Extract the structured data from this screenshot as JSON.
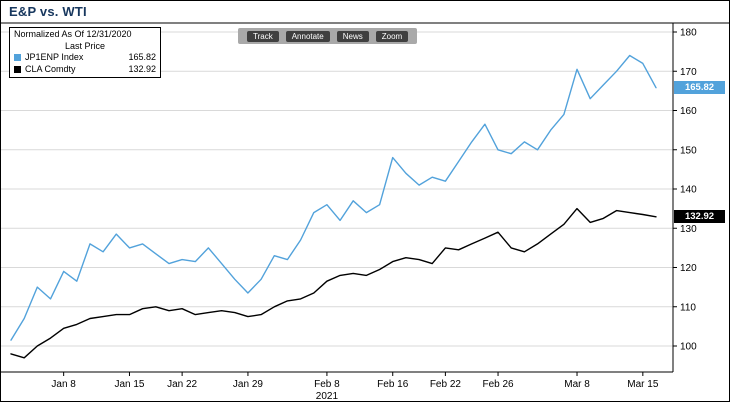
{
  "page": {
    "title": "E&P vs. WTI"
  },
  "toolbar": {
    "items": [
      "Track",
      "Annotate",
      "News",
      "Zoom"
    ]
  },
  "legend": {
    "line1": "Normalized As Of 12/31/2020",
    "line2": "Last Price",
    "series": [
      {
        "label": "JP1ENP Index",
        "value": "165.82",
        "color": "#52A2DB"
      },
      {
        "label": "CLA Comdty",
        "value": "132.92",
        "color": "#000000"
      }
    ]
  },
  "axis": {
    "y_ticks": [
      100,
      110,
      120,
      130,
      140,
      150,
      160,
      170,
      180
    ],
    "x_tick_labels": [
      "Jan 8",
      "Jan 15",
      "Jan 22",
      "Jan 29",
      "Feb 8",
      "Feb 16",
      "Feb 22",
      "Feb 26",
      "Mar 8",
      "Mar 15"
    ],
    "year_label": "2021"
  },
  "colors": {
    "title": "#17375e",
    "grid": "#d9d9d9",
    "frame": "#000000",
    "blue_series": "#52A2DB",
    "black_series": "#000000"
  },
  "chart_data": {
    "type": "line",
    "title": "E&P vs. WTI",
    "subtitle": "Normalized As Of 12/31/2020, Last Price",
    "xlabel": "2021",
    "ylabel": "",
    "ylim": [
      94,
      181
    ],
    "y_tick_step": 10,
    "grid": "horizontal",
    "legend_position": "top-left",
    "x": [
      "Jan 4",
      "Jan 5",
      "Jan 6",
      "Jan 7",
      "Jan 8",
      "Jan 11",
      "Jan 12",
      "Jan 13",
      "Jan 14",
      "Jan 15",
      "Jan 19",
      "Jan 20",
      "Jan 21",
      "Jan 22",
      "Jan 25",
      "Jan 26",
      "Jan 27",
      "Jan 28",
      "Jan 29",
      "Feb 1",
      "Feb 2",
      "Feb 3",
      "Feb 4",
      "Feb 5",
      "Feb 8",
      "Feb 9",
      "Feb 10",
      "Feb 11",
      "Feb 12",
      "Feb 16",
      "Feb 17",
      "Feb 18",
      "Feb 19",
      "Feb 22",
      "Feb 23",
      "Feb 24",
      "Feb 25",
      "Feb 26",
      "Mar 1",
      "Mar 2",
      "Mar 3",
      "Mar 4",
      "Mar 5",
      "Mar 8",
      "Mar 9",
      "Mar 10",
      "Mar 11",
      "Mar 12",
      "Mar 15",
      "Mar 16"
    ],
    "series": [
      {
        "name": "JP1ENP Index",
        "color": "#52A2DB",
        "last_price": 165.82,
        "values": [
          101.5,
          107,
          115,
          112,
          119,
          116.5,
          126,
          124,
          128.5,
          125,
          126,
          123.5,
          121,
          122,
          121.5,
          125,
          121,
          117,
          113.5,
          117,
          123,
          122,
          127,
          134,
          136,
          132,
          137,
          134,
          136,
          148,
          144,
          141,
          143,
          142,
          147,
          152,
          156.5,
          150,
          149,
          152,
          150,
          155,
          159,
          170.5,
          163,
          166.5,
          170,
          174,
          172,
          165.82
        ]
      },
      {
        "name": "CLA Comdty",
        "color": "#000000",
        "last_price": 132.92,
        "values": [
          98,
          97,
          100,
          102,
          104.5,
          105.5,
          107,
          107.5,
          108,
          108,
          109.5,
          110,
          109,
          109.5,
          108,
          108.5,
          109,
          108.5,
          107.5,
          108,
          110,
          111.5,
          112,
          113.5,
          116.5,
          118,
          118.5,
          118,
          119.5,
          121.5,
          122.5,
          122,
          121,
          125,
          124.5,
          126,
          127.5,
          129,
          125,
          124,
          126,
          128.5,
          131,
          135,
          131.5,
          132.5,
          134.5,
          134,
          133.5,
          132.92
        ]
      }
    ]
  }
}
